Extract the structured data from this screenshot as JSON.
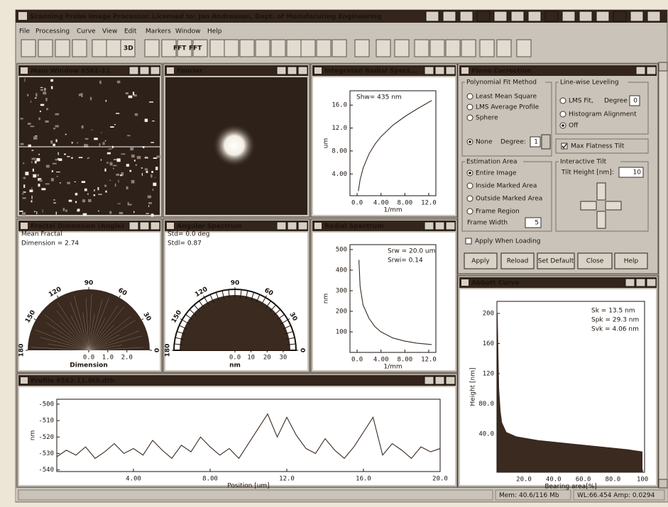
{
  "app": {
    "title": "Scanning Probe Image Processor. Licensed to: Jan Andreasen, Dept. of Manufacuring Engineering",
    "menu": [
      "File",
      "Processing",
      "Curve",
      "View",
      "Edit",
      "Markers",
      "Window",
      "Help"
    ],
    "toolbar": [
      "3D",
      "FFT",
      "FFT"
    ]
  },
  "windows": {
    "main": {
      "title": "Main Window 6562-11"
    },
    "fourier": {
      "title": "Fourier"
    },
    "integrated": {
      "title": "Integrated Radial Spect...",
      "annotations": [
        "Shw= 435 nm"
      ],
      "xlabel": "1/mm",
      "ylabel": "um",
      "xlim": [
        -1.2,
        13.2
      ],
      "ylim": [
        0.2,
        18.5
      ],
      "xticks": [
        {
          "value": 0,
          "label": "0.0"
        },
        {
          "value": 4,
          "label": "4.00"
        },
        {
          "value": 8,
          "label": "8.00"
        },
        {
          "value": 12,
          "label": "12.0"
        }
      ],
      "yticks": [
        {
          "value": 4,
          "label": "4.00"
        },
        {
          "value": 8,
          "label": "8.00"
        },
        {
          "value": 12,
          "label": "12.0"
        },
        {
          "value": 16,
          "label": "16.0"
        }
      ],
      "x": [
        0.2,
        0.5,
        1,
        2,
        3,
        4,
        6,
        8,
        10,
        12.5
      ],
      "y": [
        1,
        3,
        5,
        7.5,
        9.2,
        10.5,
        12.5,
        14,
        15.3,
        16.8
      ]
    },
    "fractal": {
      "title": "Fractal Dimension (Angle)",
      "annotations": [
        "Mean Fractal",
        "Dimension = 2.74"
      ],
      "rlabel": "Dimension",
      "angle_ticks": [
        90,
        120,
        60,
        150,
        30,
        180,
        0
      ],
      "rlim": [
        0,
        3.2
      ],
      "rticks": [
        {
          "value": 0,
          "label": "0.0"
        },
        {
          "value": 1,
          "label": "1.0"
        },
        {
          "value": 2,
          "label": "2.0"
        }
      ]
    },
    "angular": {
      "title": "Angular Spectrum",
      "annotations": [
        "Std= 0.0 deg",
        "Stdl= 0.87"
      ],
      "rlabel": "nm",
      "angle_ticks": [
        90,
        120,
        60,
        150,
        30,
        180,
        0
      ],
      "rlim": [
        0,
        38
      ],
      "rticks": [
        {
          "value": 0,
          "label": "0.0"
        },
        10,
        20,
        30
      ]
    },
    "radial": {
      "title": "Radial Spectrum",
      "annotations": [
        "Srw = 20.0 um",
        "Srwi= 0.14"
      ],
      "xlabel": "1/mm",
      "ylabel": "nm",
      "xlim": [
        -1.2,
        13.2
      ],
      "ylim": [
        0,
        524
      ],
      "xticks": [
        {
          "value": 0,
          "label": "0.0"
        },
        {
          "value": 4,
          "label": "4.00"
        },
        {
          "value": 8,
          "label": "8.00"
        },
        {
          "value": 12,
          "label": "12.0"
        }
      ],
      "yticks": [
        100,
        200,
        300,
        400,
        500
      ],
      "x": [
        0.3,
        0.5,
        1,
        2,
        3,
        4,
        6,
        8,
        10,
        12.5
      ],
      "y": [
        450,
        320,
        230,
        165,
        125,
        100,
        70,
        55,
        45,
        38
      ]
    },
    "profile": {
      "title": "Profile 6562-11.0t0.dth",
      "annotations": [],
      "xlabel": "Position [um]",
      "ylabel": "nm",
      "xlim": [
        0,
        20
      ],
      "ylim": [
        -541,
        -497
      ],
      "xticks": [
        {
          "value": 4,
          "label": "4.00"
        },
        {
          "value": 8,
          "label": "8.00"
        },
        {
          "value": 12,
          "label": "12.0"
        },
        {
          "value": 16,
          "label": "16.0"
        },
        {
          "value": 20,
          "label": "20.0"
        }
      ],
      "yticks": [
        -540,
        -530,
        -520,
        -510,
        -500
      ],
      "x": [
        0,
        0.5,
        1,
        1.5,
        2,
        2.5,
        3,
        3.5,
        4,
        4.5,
        5,
        5.5,
        6,
        6.5,
        7,
        7.5,
        8,
        8.5,
        9,
        9.5,
        10,
        10.5,
        11,
        11.5,
        12,
        12.5,
        13,
        13.5,
        14,
        14.5,
        15,
        15.5,
        16,
        16.5,
        17,
        17.5,
        18,
        18.5,
        19,
        19.5,
        20
      ],
      "y": [
        -532,
        -528,
        -531,
        -526,
        -533,
        -529,
        -524,
        -530,
        -527,
        -531,
        -522,
        -528,
        -533,
        -525,
        -529,
        -520,
        -526,
        -531,
        -527,
        -533,
        -524,
        -515,
        -506,
        -520,
        -508,
        -519,
        -527,
        -530,
        -521,
        -528,
        -533,
        -526,
        -517,
        -508,
        -531,
        -524,
        -528,
        -533,
        -526,
        -529,
        -527
      ]
    },
    "abbott": {
      "title": "Abbott Curve",
      "annotations": [
        "Sk = 13.5 nm",
        "Spk = 29.3 nm",
        "Svk = 4.06 nm"
      ],
      "xlabel": "Bearing area[%]",
      "ylabel": "Height [nm]",
      "xlim": [
        1.8,
        101.4
      ],
      "ylim": [
        -11,
        216
      ],
      "xticks": [
        {
          "value": 20,
          "label": "20.0"
        },
        {
          "value": 40,
          "label": "40.0"
        },
        {
          "value": 60,
          "label": "60.0"
        },
        {
          "value": 80,
          "label": "80.0"
        },
        100
      ],
      "yticks": [
        {
          "value": 40,
          "label": "40.0"
        },
        {
          "value": 80,
          "label": "80.0"
        },
        120,
        160,
        200
      ],
      "x": [
        2,
        3,
        4,
        5,
        8,
        15,
        30,
        50,
        70,
        90,
        100
      ],
      "y": [
        200,
        100,
        70,
        55,
        42,
        36,
        31,
        27,
        23,
        19,
        16
      ],
      "fill": true
    }
  },
  "plane_correction": {
    "title": "Plane Correction",
    "polynomial_fit": {
      "label": "Polynomial Fit Method",
      "options": [
        "Least Mean Square",
        "LMS Average Profile",
        "Sphere",
        "None"
      ],
      "selected": 3,
      "degree_label": "Degree:",
      "degree": 1
    },
    "line_leveling": {
      "label": "Line-wise Leveling",
      "options": [
        "LMS Fit,",
        "Histogram Alignment",
        "Off"
      ],
      "selected": 2,
      "degree_label": "Degree",
      "degree": 0
    },
    "max_flatness": {
      "label": "Max Flatness Tilt",
      "checked": true
    },
    "estimation_area": {
      "label": "Estimation Area",
      "options": [
        "Entire Image",
        "Inside Marked Area",
        "Outside Marked Area",
        "Frame Region"
      ],
      "selected": 0,
      "frame_width_label": "Frame Width",
      "frame_width": 5
    },
    "interactive_tilt": {
      "label": "Interactive Tilt",
      "tilt_height_label": "Tilt Height [nm]:",
      "tilt_height": 10
    },
    "apply_when_loading": {
      "label": "Apply When Loading",
      "checked": false
    },
    "buttons": [
      "Apply",
      "Reload",
      "Set Default",
      "Close",
      "Help"
    ]
  },
  "status": {
    "memory": "Mem: 40.6/116 Mb",
    "levels": "WL:66.454  Amp: 0.0294"
  }
}
